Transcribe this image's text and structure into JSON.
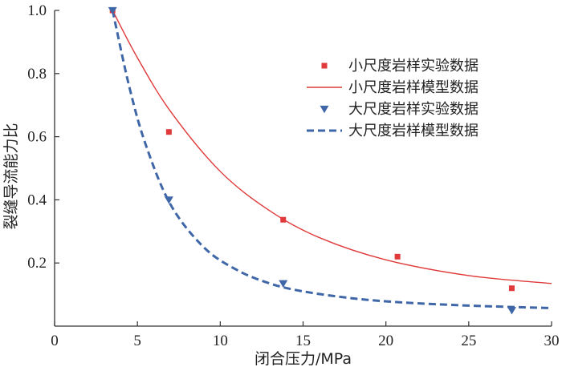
{
  "chart_data": {
    "type": "scatter",
    "xlabel": "闭合压力/MPa",
    "ylabel": "裂缝导流能力比",
    "xlim": [
      0,
      30
    ],
    "ylim": [
      0,
      1.0
    ],
    "x_ticks": [
      0,
      5,
      10,
      15,
      20,
      25,
      30
    ],
    "x_tick_labels": [
      "0",
      "5",
      "10",
      "15",
      "20",
      "25",
      "30"
    ],
    "y_ticks": [
      0.2,
      0.4,
      0.6,
      0.8,
      1.0
    ],
    "y_tick_labels": [
      "0.2",
      "0.4",
      "0.6",
      "0.8",
      "1.0"
    ],
    "grid": false,
    "legend_position": "top-right",
    "series": [
      {
        "name": "小尺度岩样实验数据",
        "kind": "scatter",
        "marker": "square",
        "color": "#e03a3a",
        "x": [
          3.5,
          6.9,
          13.8,
          20.7,
          27.6
        ],
        "y": [
          1.0,
          0.615,
          0.337,
          0.22,
          0.12
        ]
      },
      {
        "name": "小尺度岩样模型数据",
        "kind": "line",
        "line_style": "solid",
        "color": "#e03a3a",
        "x": [
          3.5,
          5,
          7,
          10,
          13,
          16,
          20,
          25,
          30
        ],
        "y": [
          1.0,
          0.85,
          0.68,
          0.49,
          0.365,
          0.28,
          0.21,
          0.16,
          0.135
        ]
      },
      {
        "name": "大尺度岩样实验数据",
        "kind": "scatter",
        "marker": "triangle-down",
        "color": "#3f67a8",
        "x": [
          3.5,
          6.9,
          13.8,
          27.6
        ],
        "y": [
          1.0,
          0.4,
          0.135,
          0.05
        ]
      },
      {
        "name": "大尺度岩样模型数据",
        "kind": "line",
        "line_style": "dashed",
        "color": "#3f67a8",
        "x": [
          3.5,
          4.5,
          5.5,
          7,
          9,
          11,
          13,
          15,
          18,
          21,
          25,
          30
        ],
        "y": [
          1.0,
          0.76,
          0.575,
          0.385,
          0.25,
          0.178,
          0.135,
          0.11,
          0.088,
          0.075,
          0.065,
          0.057
        ]
      }
    ]
  }
}
